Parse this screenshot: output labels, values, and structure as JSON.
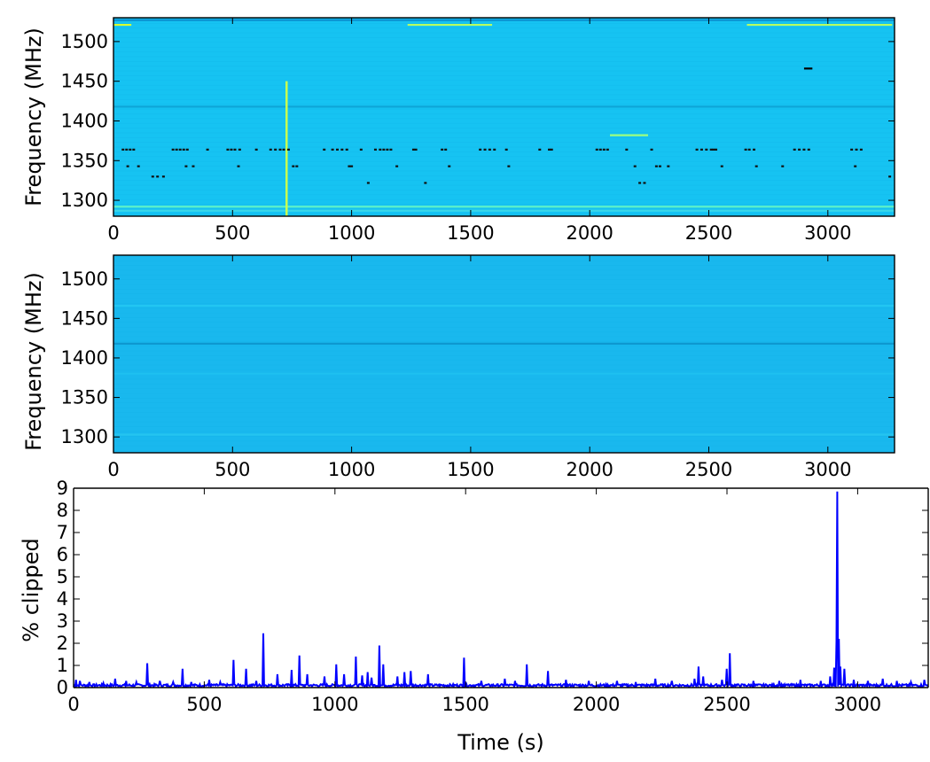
{
  "chart_data": [
    {
      "type": "heatmap",
      "panel": "top",
      "ylabel": "Frequency (MHz)",
      "xlim": [
        0,
        3280
      ],
      "ylim": [
        1280,
        1530
      ],
      "x_ticks": [
        0,
        500,
        1000,
        1500,
        2000,
        2500,
        3000
      ],
      "y_ticks": [
        1300,
        1350,
        1400,
        1450,
        1500
      ],
      "background_color": "#16c3f2",
      "colormap": "jet",
      "horizontal_bands": [
        {
          "freq": 1292,
          "color": "#5cf0c8"
        },
        {
          "freq": 1287,
          "color": "#3ad6e8"
        },
        {
          "freq": 1418,
          "color": "#0ea6d8"
        },
        {
          "freq": 1527,
          "color": "#0a8fd0"
        }
      ],
      "vertical_features": [
        {
          "time": 727,
          "freq_min": 1280,
          "freq_max": 1450,
          "color": "#c8ff50"
        }
      ],
      "segments": [
        {
          "t0": 0,
          "t1": 75,
          "freq": 1521,
          "color": "#d8ff30"
        },
        {
          "t0": 1235,
          "t1": 1590,
          "freq": 1521,
          "color": "#b8ff60"
        },
        {
          "t0": 2660,
          "t1": 3270,
          "freq": 1521,
          "color": "#b8ff60"
        },
        {
          "t0": 2085,
          "t1": 2245,
          "freq": 1382,
          "color": "#9cff80"
        },
        {
          "t0": 2900,
          "t1": 2935,
          "freq": 1466,
          "color": "#000000"
        }
      ],
      "flagged_points": [
        {
          "t": 40,
          "f": 1364
        },
        {
          "t": 55,
          "f": 1364
        },
        {
          "t": 70,
          "f": 1364
        },
        {
          "t": 85,
          "f": 1364
        },
        {
          "t": 60,
          "f": 1343
        },
        {
          "t": 105,
          "f": 1343
        },
        {
          "t": 165,
          "f": 1330
        },
        {
          "t": 185,
          "f": 1330
        },
        {
          "t": 210,
          "f": 1330
        },
        {
          "t": 250,
          "f": 1364
        },
        {
          "t": 265,
          "f": 1364
        },
        {
          "t": 280,
          "f": 1364
        },
        {
          "t": 295,
          "f": 1364
        },
        {
          "t": 310,
          "f": 1364
        },
        {
          "t": 305,
          "f": 1343
        },
        {
          "t": 335,
          "f": 1343
        },
        {
          "t": 395,
          "f": 1364
        },
        {
          "t": 480,
          "f": 1364
        },
        {
          "t": 495,
          "f": 1364
        },
        {
          "t": 510,
          "f": 1364
        },
        {
          "t": 530,
          "f": 1364
        },
        {
          "t": 525,
          "f": 1343
        },
        {
          "t": 600,
          "f": 1364
        },
        {
          "t": 660,
          "f": 1364
        },
        {
          "t": 680,
          "f": 1364
        },
        {
          "t": 700,
          "f": 1364
        },
        {
          "t": 715,
          "f": 1364
        },
        {
          "t": 735,
          "f": 1364
        },
        {
          "t": 755,
          "f": 1343
        },
        {
          "t": 770,
          "f": 1343
        },
        {
          "t": 885,
          "f": 1364
        },
        {
          "t": 920,
          "f": 1364
        },
        {
          "t": 940,
          "f": 1364
        },
        {
          "t": 960,
          "f": 1364
        },
        {
          "t": 980,
          "f": 1364
        },
        {
          "t": 990,
          "f": 1343
        },
        {
          "t": 1000,
          "f": 1343
        },
        {
          "t": 1040,
          "f": 1364
        },
        {
          "t": 1070,
          "f": 1322
        },
        {
          "t": 1100,
          "f": 1364
        },
        {
          "t": 1120,
          "f": 1364
        },
        {
          "t": 1135,
          "f": 1364
        },
        {
          "t": 1150,
          "f": 1364
        },
        {
          "t": 1165,
          "f": 1364
        },
        {
          "t": 1190,
          "f": 1343
        },
        {
          "t": 1260,
          "f": 1364
        },
        {
          "t": 1270,
          "f": 1364
        },
        {
          "t": 1310,
          "f": 1322
        },
        {
          "t": 1380,
          "f": 1364
        },
        {
          "t": 1395,
          "f": 1364
        },
        {
          "t": 1410,
          "f": 1343
        },
        {
          "t": 1540,
          "f": 1364
        },
        {
          "t": 1560,
          "f": 1364
        },
        {
          "t": 1580,
          "f": 1364
        },
        {
          "t": 1600,
          "f": 1364
        },
        {
          "t": 1650,
          "f": 1364
        },
        {
          "t": 1660,
          "f": 1343
        },
        {
          "t": 1790,
          "f": 1364
        },
        {
          "t": 1830,
          "f": 1364
        },
        {
          "t": 1840,
          "f": 1364
        },
        {
          "t": 2030,
          "f": 1364
        },
        {
          "t": 2045,
          "f": 1364
        },
        {
          "t": 2060,
          "f": 1364
        },
        {
          "t": 2075,
          "f": 1364
        },
        {
          "t": 2155,
          "f": 1364
        },
        {
          "t": 2190,
          "f": 1343
        },
        {
          "t": 2210,
          "f": 1322
        },
        {
          "t": 2230,
          "f": 1322
        },
        {
          "t": 2260,
          "f": 1364
        },
        {
          "t": 2280,
          "f": 1343
        },
        {
          "t": 2295,
          "f": 1343
        },
        {
          "t": 2330,
          "f": 1343
        },
        {
          "t": 2450,
          "f": 1364
        },
        {
          "t": 2470,
          "f": 1364
        },
        {
          "t": 2490,
          "f": 1364
        },
        {
          "t": 2510,
          "f": 1364
        },
        {
          "t": 2520,
          "f": 1364
        },
        {
          "t": 2530,
          "f": 1364
        },
        {
          "t": 2555,
          "f": 1343
        },
        {
          "t": 2655,
          "f": 1364
        },
        {
          "t": 2670,
          "f": 1364
        },
        {
          "t": 2690,
          "f": 1364
        },
        {
          "t": 2700,
          "f": 1343
        },
        {
          "t": 2810,
          "f": 1343
        },
        {
          "t": 2860,
          "f": 1364
        },
        {
          "t": 2880,
          "f": 1364
        },
        {
          "t": 2900,
          "f": 1364
        },
        {
          "t": 2920,
          "f": 1364
        },
        {
          "t": 3100,
          "f": 1364
        },
        {
          "t": 3120,
          "f": 1364
        },
        {
          "t": 3140,
          "f": 1364
        },
        {
          "t": 3115,
          "f": 1343
        },
        {
          "t": 3260,
          "f": 1330
        }
      ]
    },
    {
      "type": "heatmap",
      "panel": "middle",
      "ylabel": "Frequency (MHz)",
      "xlim": [
        0,
        3280
      ],
      "ylim": [
        1280,
        1530
      ],
      "x_ticks": [
        0,
        500,
        1000,
        1500,
        2000,
        2500,
        3000
      ],
      "y_ticks": [
        1300,
        1350,
        1400,
        1450,
        1500
      ],
      "background_color": "#19b8ee",
      "colormap": "jet",
      "horizontal_bands": [
        {
          "freq": 1418,
          "color": "#0e98d0"
        },
        {
          "freq": 1466,
          "color": "#22c6f2"
        },
        {
          "freq": 1303,
          "color": "#24c4f0"
        },
        {
          "freq": 1380,
          "color": "#1ec0f0"
        }
      ]
    },
    {
      "type": "line",
      "panel": "bottom",
      "xlabel": "Time (s)",
      "ylabel": "% clipped",
      "xlim": [
        0,
        3270
      ],
      "ylim": [
        0,
        9
      ],
      "x_ticks": [
        0,
        500,
        1000,
        1500,
        2000,
        2500,
        3000
      ],
      "y_ticks": [
        0,
        1,
        2,
        3,
        4,
        5,
        6,
        7,
        8,
        9
      ],
      "line_color": "#0000ff",
      "baseline": 0.12,
      "peaks": [
        {
          "x": 10,
          "y": 0.35
        },
        {
          "x": 25,
          "y": 0.3
        },
        {
          "x": 60,
          "y": 0.25
        },
        {
          "x": 115,
          "y": 0.2
        },
        {
          "x": 160,
          "y": 0.4
        },
        {
          "x": 200,
          "y": 0.3
        },
        {
          "x": 240,
          "y": 0.25
        },
        {
          "x": 283,
          "y": 1.1
        },
        {
          "x": 330,
          "y": 0.3
        },
        {
          "x": 380,
          "y": 0.25
        },
        {
          "x": 418,
          "y": 0.85
        },
        {
          "x": 450,
          "y": 0.25
        },
        {
          "x": 520,
          "y": 0.35
        },
        {
          "x": 560,
          "y": 0.25
        },
        {
          "x": 612,
          "y": 1.25
        },
        {
          "x": 660,
          "y": 0.85
        },
        {
          "x": 700,
          "y": 0.3
        },
        {
          "x": 727,
          "y": 2.45
        },
        {
          "x": 780,
          "y": 0.6
        },
        {
          "x": 835,
          "y": 0.8
        },
        {
          "x": 865,
          "y": 1.45
        },
        {
          "x": 895,
          "y": 0.6
        },
        {
          "x": 960,
          "y": 0.5
        },
        {
          "x": 1005,
          "y": 1.05
        },
        {
          "x": 1035,
          "y": 0.6
        },
        {
          "x": 1080,
          "y": 1.4
        },
        {
          "x": 1105,
          "y": 0.55
        },
        {
          "x": 1125,
          "y": 0.7
        },
        {
          "x": 1140,
          "y": 0.45
        },
        {
          "x": 1170,
          "y": 1.9
        },
        {
          "x": 1185,
          "y": 1.05
        },
        {
          "x": 1240,
          "y": 0.5
        },
        {
          "x": 1265,
          "y": 0.7
        },
        {
          "x": 1290,
          "y": 0.75
        },
        {
          "x": 1355,
          "y": 0.6
        },
        {
          "x": 1495,
          "y": 1.35
        },
        {
          "x": 1560,
          "y": 0.3
        },
        {
          "x": 1650,
          "y": 0.4
        },
        {
          "x": 1690,
          "y": 0.3
        },
        {
          "x": 1735,
          "y": 1.05
        },
        {
          "x": 1815,
          "y": 0.75
        },
        {
          "x": 1885,
          "y": 0.35
        },
        {
          "x": 1970,
          "y": 0.3
        },
        {
          "x": 2080,
          "y": 0.3
        },
        {
          "x": 2150,
          "y": 0.25
        },
        {
          "x": 2225,
          "y": 0.4
        },
        {
          "x": 2290,
          "y": 0.3
        },
        {
          "x": 2375,
          "y": 0.4
        },
        {
          "x": 2390,
          "y": 0.95
        },
        {
          "x": 2410,
          "y": 0.5
        },
        {
          "x": 2480,
          "y": 0.35
        },
        {
          "x": 2500,
          "y": 0.85
        },
        {
          "x": 2512,
          "y": 1.55
        },
        {
          "x": 2600,
          "y": 0.3
        },
        {
          "x": 2700,
          "y": 0.3
        },
        {
          "x": 2780,
          "y": 0.35
        },
        {
          "x": 2860,
          "y": 0.3
        },
        {
          "x": 2895,
          "y": 0.5
        },
        {
          "x": 2910,
          "y": 0.9
        },
        {
          "x": 2918,
          "y": 2.1
        },
        {
          "x": 2923,
          "y": 8.85
        },
        {
          "x": 2928,
          "y": 2.2
        },
        {
          "x": 2935,
          "y": 0.95
        },
        {
          "x": 2950,
          "y": 0.85
        },
        {
          "x": 2985,
          "y": 0.35
        },
        {
          "x": 3040,
          "y": 0.3
        },
        {
          "x": 3095,
          "y": 0.4
        },
        {
          "x": 3150,
          "y": 0.3
        },
        {
          "x": 3205,
          "y": 0.25
        },
        {
          "x": 3255,
          "y": 0.35
        }
      ]
    }
  ]
}
